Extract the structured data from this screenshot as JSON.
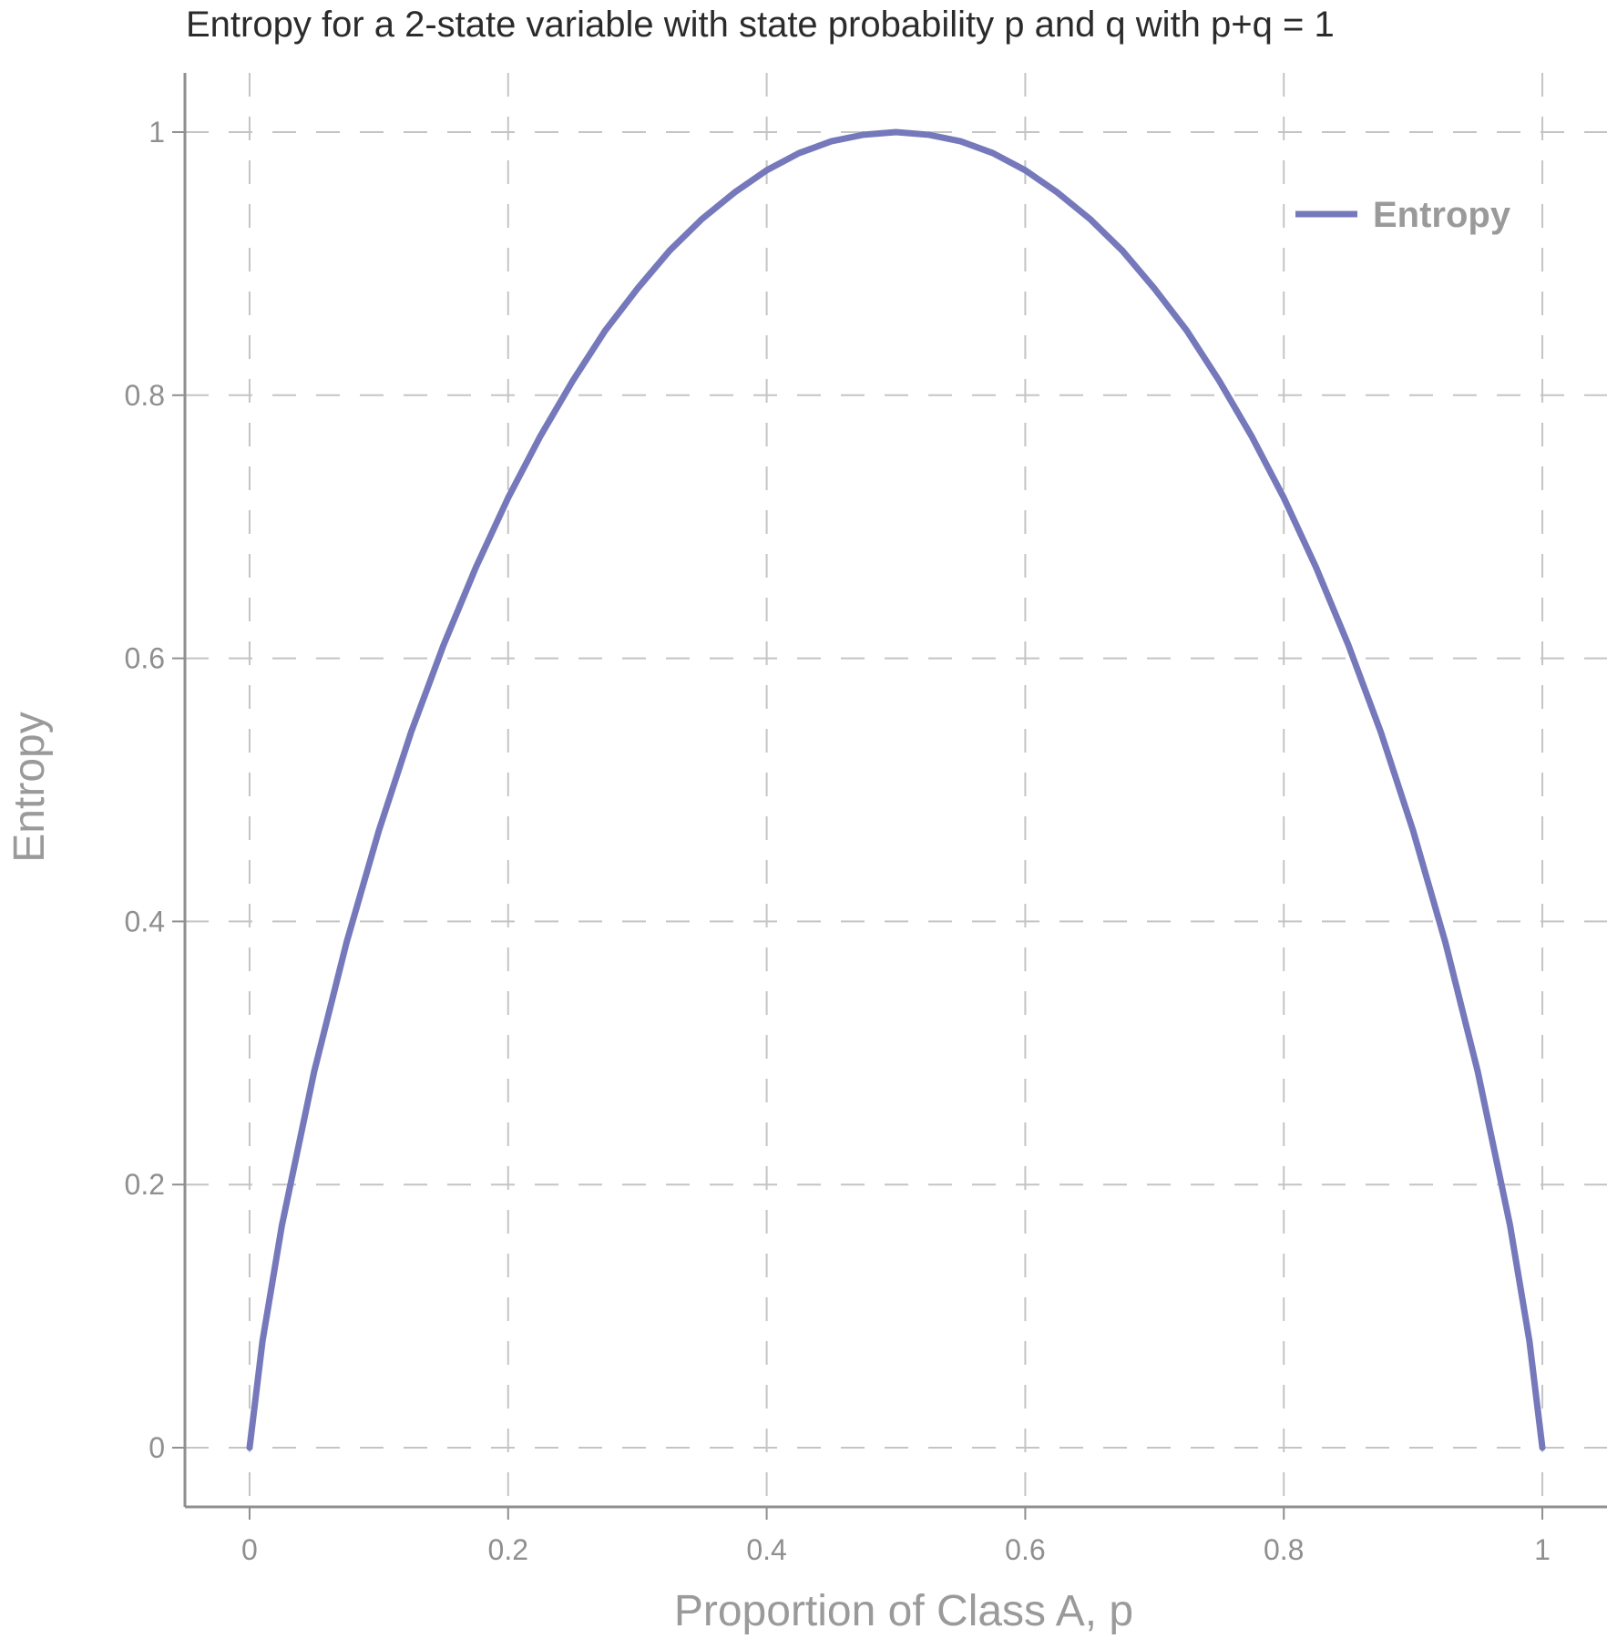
{
  "chart_data": {
    "type": "line",
    "title": "Entropy for a 2-state variable with state probability p and q with p+q = 1",
    "xlabel": "Proportion of Class A, p",
    "ylabel": "Entropy",
    "xlim": [
      -0.05,
      1.05
    ],
    "ylim": [
      -0.045,
      1.045
    ],
    "x_ticks": [
      0,
      0.2,
      0.4,
      0.6,
      0.8,
      1
    ],
    "x_tick_labels": [
      "0",
      "0.2",
      "0.4",
      "0.6",
      "0.8",
      "1"
    ],
    "y_ticks": [
      0,
      0.2,
      0.4,
      0.6,
      0.8,
      1
    ],
    "y_tick_labels": [
      "0",
      "0.2",
      "0.4",
      "0.6",
      "0.8",
      "1"
    ],
    "grid": true,
    "legend_position": "top-right",
    "series": [
      {
        "name": "Entropy",
        "color": "#7579bb",
        "x": [
          0.0,
          0.01,
          0.025,
          0.05,
          0.075,
          0.1,
          0.125,
          0.15,
          0.175,
          0.2,
          0.225,
          0.25,
          0.275,
          0.3,
          0.325,
          0.35,
          0.375,
          0.4,
          0.425,
          0.45,
          0.475,
          0.5,
          0.525,
          0.55,
          0.575,
          0.6,
          0.625,
          0.65,
          0.675,
          0.7,
          0.725,
          0.75,
          0.775,
          0.8,
          0.825,
          0.85,
          0.875,
          0.9,
          0.925,
          0.95,
          0.975,
          0.99,
          1.0
        ],
        "y": [
          0.0,
          0.081,
          0.169,
          0.286,
          0.384,
          0.469,
          0.544,
          0.61,
          0.669,
          0.722,
          0.769,
          0.811,
          0.849,
          0.881,
          0.91,
          0.934,
          0.954,
          0.971,
          0.984,
          0.993,
          0.998,
          1.0,
          0.998,
          0.993,
          0.984,
          0.971,
          0.954,
          0.934,
          0.91,
          0.881,
          0.849,
          0.811,
          0.769,
          0.722,
          0.669,
          0.61,
          0.544,
          0.469,
          0.384,
          0.286,
          0.169,
          0.081,
          0.0
        ]
      }
    ]
  }
}
